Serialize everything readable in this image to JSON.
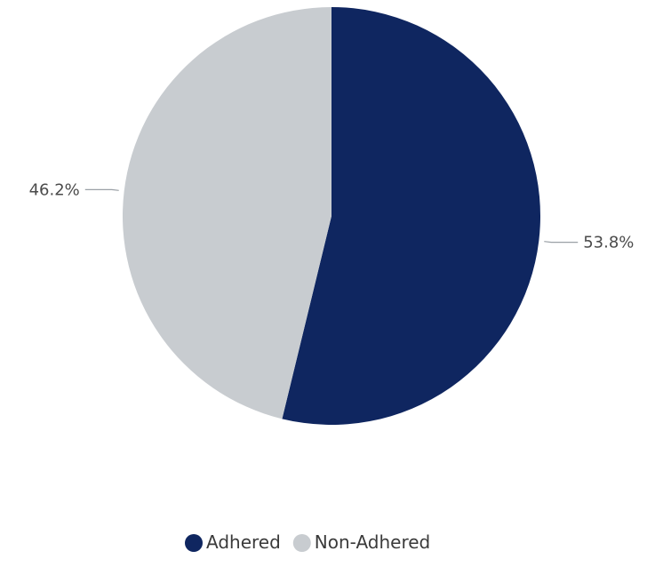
{
  "chart_data": {
    "type": "pie",
    "categories": [
      "Adhered",
      "Non-Adhered"
    ],
    "values": [
      53.8,
      46.2
    ],
    "labels": [
      "53.8%",
      "46.2%"
    ],
    "colors": [
      "#0f2660",
      "#c8ccd0"
    ],
    "start_angle_deg": 0,
    "direction": "clockwise",
    "legend_position": "bottom-center",
    "title": "",
    "label_color": "#4a4a4a",
    "leader_color": "#9aa0a6"
  }
}
